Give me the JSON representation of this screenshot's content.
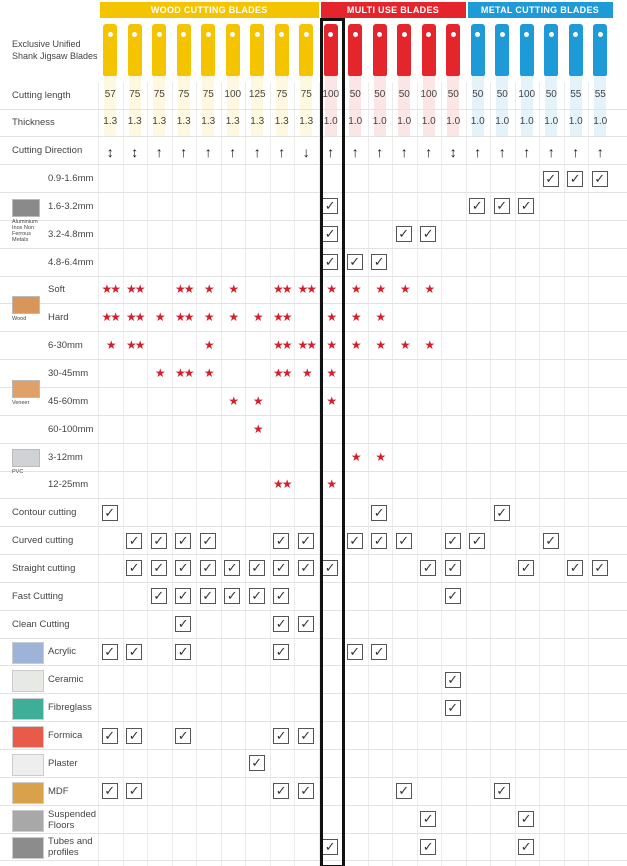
{
  "header": {
    "title": "Exclusive Unified Shank Jigsaw Blades"
  },
  "groups": [
    {
      "title": "WOOD CUTTING BLADES",
      "color": "#f5c400",
      "cutting_length": [
        57,
        75,
        75,
        75,
        75,
        100,
        125,
        75,
        75
      ],
      "thickness": [
        "1.3",
        "1.3",
        "1.3",
        "1.3",
        "1.3",
        "1.3",
        "1.3",
        "1.3",
        "1.3"
      ],
      "direction": [
        "↕",
        "↕",
        "↑",
        "↑",
        "↑",
        "↑",
        "↑",
        "↑",
        "↓"
      ]
    },
    {
      "title": "MULTI USE BLADES",
      "color": "#e4262c",
      "cutting_length": [
        100,
        50,
        50,
        50,
        100,
        50
      ],
      "thickness": [
        "1.0",
        "1.0",
        "1.0",
        "1.0",
        "1.0",
        "1.0"
      ],
      "direction": [
        "↑",
        "↑",
        "↑",
        "↑",
        "↑",
        "↕"
      ]
    },
    {
      "title": "METAL CUTTING BLADES",
      "color": "#1e9ad6",
      "cutting_length": [
        50,
        50,
        100,
        50,
        55,
        55
      ],
      "thickness": [
        "1.0",
        "1.0",
        "1.0",
        "1.0",
        "1.0",
        "1.0"
      ],
      "direction": [
        "↑",
        "↑",
        "↑",
        "↑",
        "↑",
        "↑"
      ]
    }
  ],
  "spec_rows": [
    "Cutting length",
    "Thickness",
    "Cutting Direction"
  ],
  "sections": [
    {
      "label": "Aluminium Inox Non Ferrous Metals",
      "rows": [
        {
          "name": "0.9-1.6mm",
          "cells": [
            null,
            null,
            null,
            null,
            null,
            null,
            null,
            null,
            null,
            null,
            null,
            null,
            null,
            null,
            null,
            null,
            null,
            null,
            "✓",
            "✓",
            "✓"
          ]
        },
        {
          "name": "1.6-3.2mm",
          "cells": [
            null,
            null,
            null,
            null,
            null,
            null,
            null,
            null,
            null,
            "✓",
            null,
            null,
            null,
            null,
            null,
            "✓",
            "✓",
            "✓",
            null,
            null,
            null
          ]
        },
        {
          "name": "3.2-4.8mm",
          "cells": [
            null,
            null,
            null,
            null,
            null,
            null,
            null,
            null,
            null,
            "✓",
            null,
            null,
            "✓",
            "✓",
            null,
            null,
            null,
            null,
            null,
            null,
            null
          ]
        },
        {
          "name": "4.8-6.4mm",
          "cells": [
            null,
            null,
            null,
            null,
            null,
            null,
            null,
            null,
            null,
            "✓",
            "✓",
            "✓",
            null,
            null,
            null,
            null,
            null,
            null,
            null,
            null,
            null
          ]
        }
      ]
    },
    {
      "label": "Wood",
      "rows": [
        {
          "name": "Soft",
          "cells": [
            "★★",
            "★★",
            null,
            "★★",
            "★",
            "★",
            null,
            "★★",
            "★★",
            "★",
            "★",
            "★",
            "★",
            "★",
            null,
            null,
            null,
            null,
            null,
            null,
            null
          ]
        },
        {
          "name": "Hard",
          "cells": [
            "★★",
            "★★",
            "★",
            "★★",
            "★",
            "★",
            "★",
            "★★",
            null,
            "★",
            "★",
            "★",
            null,
            null,
            null,
            null,
            null,
            null,
            null,
            null,
            null
          ]
        },
        {
          "name": "6-30mm",
          "cells": [
            "★",
            "★★",
            null,
            null,
            "★",
            null,
            null,
            "★★",
            "★★",
            "★",
            "★",
            "★",
            "★",
            "★",
            null,
            null,
            null,
            null,
            null,
            null,
            null
          ]
        }
      ]
    },
    {
      "label": "Veneer",
      "rows": [
        {
          "name": "30-45mm",
          "cells": [
            null,
            null,
            "★",
            "★★",
            "★",
            null,
            null,
            "★★",
            "★",
            "★",
            null,
            null,
            null,
            null,
            null,
            null,
            null,
            null,
            null,
            null,
            null
          ]
        },
        {
          "name": "45-60mm",
          "cells": [
            null,
            null,
            null,
            null,
            null,
            "★",
            "★",
            null,
            null,
            "★",
            null,
            null,
            null,
            null,
            null,
            null,
            null,
            null,
            null,
            null,
            null
          ]
        },
        {
          "name": "60-100mm",
          "cells": [
            null,
            null,
            null,
            null,
            null,
            null,
            "★",
            null,
            null,
            null,
            null,
            null,
            null,
            null,
            null,
            null,
            null,
            null,
            null,
            null,
            null
          ]
        }
      ]
    },
    {
      "label": "PVC",
      "rows": [
        {
          "name": "3-12mm",
          "cells": [
            null,
            null,
            null,
            null,
            null,
            null,
            null,
            null,
            null,
            null,
            "★",
            "★",
            null,
            null,
            null,
            null,
            null,
            null,
            null,
            null,
            null
          ]
        },
        {
          "name": "12-25mm",
          "cells": [
            null,
            null,
            null,
            null,
            null,
            null,
            null,
            "★★",
            null,
            "★",
            null,
            null,
            null,
            null,
            null,
            null,
            null,
            null,
            null,
            null,
            null
          ]
        }
      ]
    },
    {
      "rows": [
        {
          "name": "Contour cutting",
          "cells": [
            "✓",
            null,
            null,
            null,
            null,
            null,
            null,
            null,
            null,
            null,
            null,
            "✓",
            null,
            null,
            null,
            null,
            "✓",
            null,
            null,
            null,
            null
          ]
        },
        {
          "name": "Curved cutting",
          "cells": [
            null,
            "✓",
            "✓",
            "✓",
            "✓",
            null,
            null,
            "✓",
            "✓",
            null,
            "✓",
            "✓",
            "✓",
            null,
            "✓",
            "✓",
            null,
            null,
            "✓",
            null,
            null
          ]
        },
        {
          "name": "Straight cutting",
          "cells": [
            null,
            "✓",
            "✓",
            "✓",
            "✓",
            "✓",
            "✓",
            "✓",
            "✓",
            "✓",
            null,
            null,
            null,
            "✓",
            "✓",
            null,
            null,
            "✓",
            null,
            "✓",
            "✓"
          ]
        },
        {
          "name": "Fast Cutting",
          "cells": [
            null,
            null,
            "✓",
            "✓",
            "✓",
            "✓",
            "✓",
            "✓",
            null,
            null,
            null,
            null,
            null,
            null,
            "✓",
            null,
            null,
            null,
            null,
            null,
            null
          ]
        },
        {
          "name": "Clean Cutting",
          "cells": [
            null,
            null,
            null,
            "✓",
            null,
            null,
            null,
            "✓",
            "✓",
            null,
            null,
            null,
            null,
            null,
            null,
            null,
            null,
            null,
            null,
            null,
            null
          ]
        },
        {
          "name": "Acrylic",
          "cells": [
            "✓",
            "✓",
            null,
            "✓",
            null,
            null,
            null,
            "✓",
            null,
            null,
            "✓",
            "✓",
            null,
            null,
            null,
            null,
            null,
            null,
            null,
            null,
            null
          ]
        },
        {
          "name": "Ceramic",
          "cells": [
            null,
            null,
            null,
            null,
            null,
            null,
            null,
            null,
            null,
            null,
            null,
            null,
            null,
            null,
            "✓",
            null,
            null,
            null,
            null,
            null,
            null
          ]
        },
        {
          "name": "Fibreglass",
          "cells": [
            null,
            null,
            null,
            null,
            null,
            null,
            null,
            null,
            null,
            null,
            null,
            null,
            null,
            null,
            "✓",
            null,
            null,
            null,
            null,
            null,
            null
          ]
        },
        {
          "name": "Formica",
          "cells": [
            "✓",
            "✓",
            null,
            "✓",
            null,
            null,
            null,
            "✓",
            "✓",
            null,
            null,
            null,
            null,
            null,
            null,
            null,
            null,
            null,
            null,
            null,
            null
          ]
        },
        {
          "name": "Plaster",
          "cells": [
            null,
            null,
            null,
            null,
            null,
            null,
            "✓",
            null,
            null,
            null,
            null,
            null,
            null,
            null,
            null,
            null,
            null,
            null,
            null,
            null,
            null
          ]
        },
        {
          "name": "MDF",
          "cells": [
            "✓",
            "✓",
            null,
            null,
            null,
            null,
            null,
            "✓",
            "✓",
            null,
            null,
            null,
            "✓",
            null,
            null,
            null,
            "✓",
            null,
            null,
            null,
            null
          ]
        },
        {
          "name": "Suspended Floors",
          "cells": [
            null,
            null,
            null,
            null,
            null,
            null,
            null,
            null,
            null,
            null,
            null,
            null,
            null,
            "✓",
            null,
            null,
            null,
            "✓",
            null,
            null,
            null
          ]
        },
        {
          "name": "Tubes and profiles",
          "cells": [
            null,
            null,
            null,
            null,
            null,
            null,
            null,
            null,
            null,
            "✓",
            null,
            null,
            null,
            "✓",
            null,
            null,
            null,
            "✓",
            null,
            null,
            null
          ]
        }
      ]
    }
  ]
}
